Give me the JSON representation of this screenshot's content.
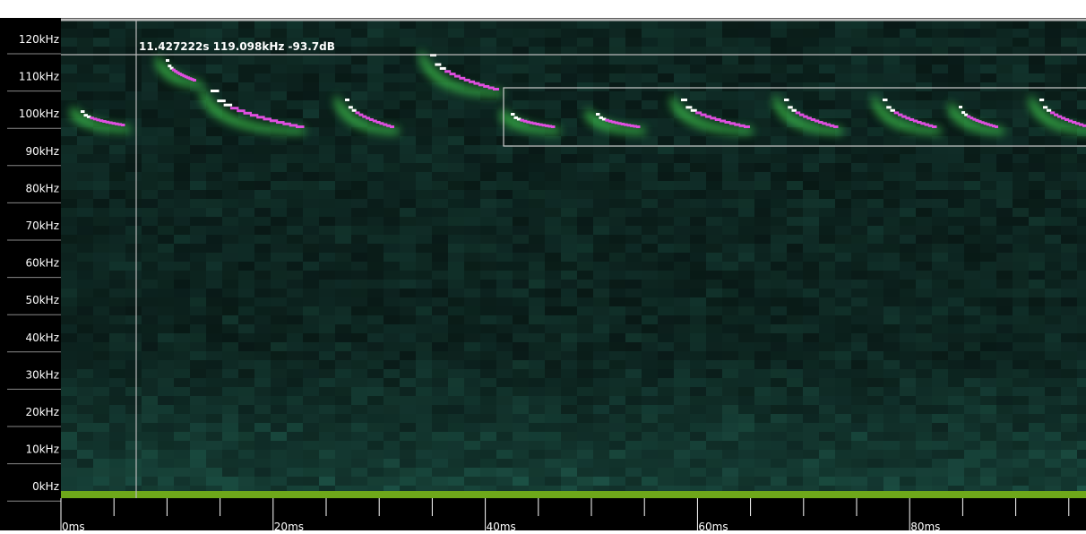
{
  "y_axis": {
    "labels": [
      "120kHz",
      "110kHz",
      "100kHz",
      "90kHz",
      "80kHz",
      "70kHz",
      "60kHz",
      "50kHz",
      "40kHz",
      "30kHz",
      "20kHz",
      "10kHz",
      "0kHz"
    ]
  },
  "x_axis": {
    "labels": [
      "0ms",
      "20ms",
      "40ms",
      "60ms",
      "80ms"
    ]
  },
  "cursor_readout": "11.427222s 119.098kHz -93.7dB"
}
